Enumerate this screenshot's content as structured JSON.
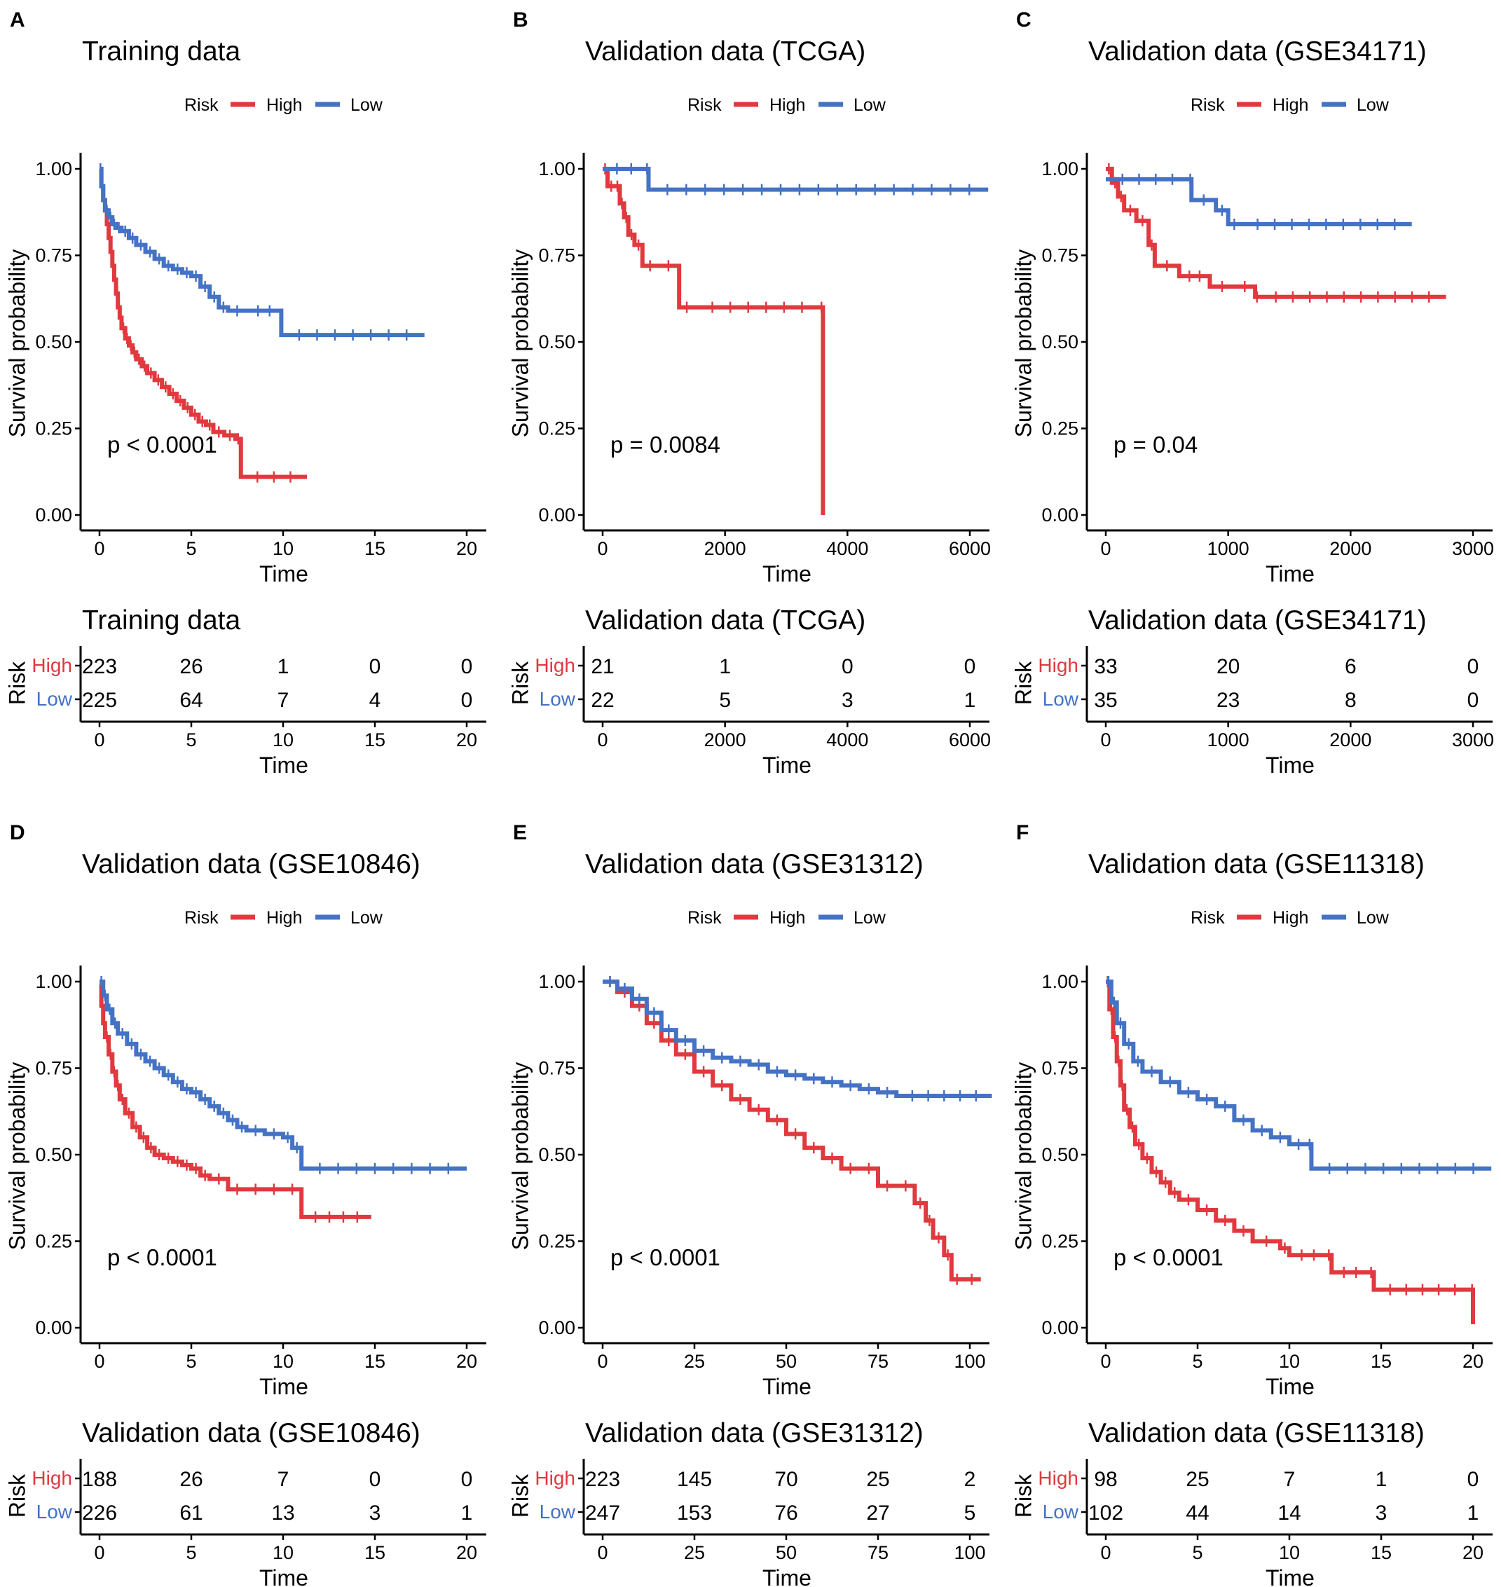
{
  "colors": {
    "high": "#e0393e",
    "low": "#4472c4",
    "axis": "#000000"
  },
  "legend": {
    "title": "Risk",
    "high": "High",
    "low": "Low"
  },
  "axis_labels": {
    "x": "Time",
    "y": "Survival probability",
    "risk_y": "Risk"
  },
  "chart_data": [
    {
      "type": "line",
      "panel": "A",
      "title": "Training data",
      "pvalue": "p < 0.0001",
      "xlim": [
        0,
        20
      ],
      "xticks": [
        "0",
        "5",
        "10",
        "15",
        "20"
      ],
      "ylim": [
        0,
        1
      ],
      "yticks": [
        "0.00",
        "0.25",
        "0.50",
        "0.75",
        "1.00"
      ],
      "series": [
        {
          "name": "High",
          "x": [
            0,
            0.1,
            0.2,
            0.3,
            0.4,
            0.5,
            0.6,
            0.7,
            0.8,
            0.9,
            1.0,
            1.1,
            1.2,
            1.4,
            1.6,
            1.8,
            2.0,
            2.3,
            2.6,
            3.0,
            3.4,
            3.8,
            4.2,
            4.6,
            5.0,
            5.4,
            5.8,
            6.2,
            6.8,
            7.4,
            7.7,
            11.3
          ],
          "y": [
            1.0,
            0.95,
            0.91,
            0.88,
            0.84,
            0.8,
            0.76,
            0.72,
            0.68,
            0.64,
            0.6,
            0.57,
            0.54,
            0.51,
            0.49,
            0.47,
            0.45,
            0.43,
            0.41,
            0.39,
            0.37,
            0.35,
            0.33,
            0.31,
            0.29,
            0.27,
            0.26,
            0.24,
            0.23,
            0.22,
            0.11,
            0.11
          ]
        },
        {
          "name": "Low",
          "x": [
            0,
            0.1,
            0.2,
            0.3,
            0.5,
            0.7,
            0.9,
            1.2,
            1.6,
            2.0,
            2.5,
            3.0,
            3.5,
            4.0,
            4.5,
            5.0,
            5.5,
            6.0,
            6.5,
            7.0,
            8.0,
            9.9,
            17.7
          ],
          "y": [
            1.0,
            0.95,
            0.91,
            0.88,
            0.86,
            0.84,
            0.83,
            0.82,
            0.8,
            0.78,
            0.76,
            0.74,
            0.72,
            0.71,
            0.7,
            0.69,
            0.66,
            0.63,
            0.6,
            0.59,
            0.59,
            0.52,
            0.52
          ]
        }
      ],
      "risk_table": {
        "title": "Training data",
        "high": [
          "223",
          "26",
          "1",
          "0",
          "0"
        ],
        "low": [
          "225",
          "64",
          "7",
          "4",
          "0"
        ]
      }
    },
    {
      "type": "line",
      "panel": "B",
      "title": "Validation data (TCGA)",
      "pvalue": "p = 0.0084",
      "xlim": [
        0,
        6000
      ],
      "xticks": [
        "0",
        "2000",
        "4000",
        "6000"
      ],
      "ylim": [
        0,
        1
      ],
      "yticks": [
        "0.00",
        "0.25",
        "0.50",
        "0.75",
        "1.00"
      ],
      "series": [
        {
          "name": "High",
          "x": [
            0,
            80,
            200,
            280,
            350,
            420,
            520,
            650,
            900,
            1250,
            1500,
            3550,
            3600
          ],
          "y": [
            1.0,
            0.95,
            0.95,
            0.9,
            0.86,
            0.81,
            0.78,
            0.72,
            0.72,
            0.6,
            0.6,
            0.6,
            0.0
          ]
        },
        {
          "name": "Low",
          "x": [
            0,
            700,
            750,
            6300
          ],
          "y": [
            1.0,
            1.0,
            0.94,
            0.94
          ]
        }
      ],
      "risk_table": {
        "title": "Validation data (TCGA)",
        "high": [
          "21",
          "1",
          "0",
          "0"
        ],
        "low": [
          "22",
          "5",
          "3",
          "1"
        ]
      }
    },
    {
      "type": "line",
      "panel": "C",
      "title": "Validation data (GSE34171)",
      "pvalue": "p = 0.04",
      "xlim": [
        0,
        3000
      ],
      "xticks": [
        "0",
        "1000",
        "2000",
        "3000"
      ],
      "ylim": [
        0,
        1
      ],
      "yticks": [
        "0.00",
        "0.25",
        "0.50",
        "0.75",
        "1.00"
      ],
      "series": [
        {
          "name": "High",
          "x": [
            0,
            50,
            100,
            150,
            250,
            350,
            400,
            600,
            850,
            1050,
            1220,
            1250,
            2780
          ],
          "y": [
            1.0,
            0.96,
            0.92,
            0.88,
            0.85,
            0.78,
            0.72,
            0.69,
            0.66,
            0.66,
            0.63,
            0.63,
            0.63
          ]
        },
        {
          "name": "Low",
          "x": [
            0,
            680,
            700,
            900,
            1000,
            1100,
            2500
          ],
          "y": [
            0.97,
            0.97,
            0.91,
            0.88,
            0.84,
            0.84,
            0.84
          ]
        }
      ],
      "risk_table": {
        "title": "Validation data (GSE34171)",
        "high": [
          "33",
          "20",
          "6",
          "0"
        ],
        "low": [
          "35",
          "23",
          "8",
          "0"
        ]
      }
    },
    {
      "type": "line",
      "panel": "D",
      "title": "Validation data (GSE10846)",
      "pvalue": "p < 0.0001",
      "xlim": [
        0,
        20
      ],
      "xticks": [
        "0",
        "5",
        "10",
        "15",
        "20"
      ],
      "ylim": [
        0,
        1
      ],
      "yticks": [
        "0.00",
        "0.25",
        "0.50",
        "0.75",
        "1.00"
      ],
      "series": [
        {
          "name": "High",
          "x": [
            0,
            0.1,
            0.2,
            0.3,
            0.5,
            0.7,
            0.9,
            1.1,
            1.4,
            1.8,
            2.2,
            2.6,
            3.0,
            3.5,
            4.0,
            4.5,
            5.0,
            5.5,
            6.0,
            7.0,
            8.0,
            9.0,
            10.0,
            11.0,
            14.8
          ],
          "y": [
            0.99,
            0.93,
            0.88,
            0.84,
            0.79,
            0.74,
            0.7,
            0.66,
            0.62,
            0.58,
            0.55,
            0.52,
            0.5,
            0.49,
            0.48,
            0.47,
            0.46,
            0.44,
            0.43,
            0.4,
            0.4,
            0.4,
            0.4,
            0.32,
            0.32
          ]
        },
        {
          "name": "Low",
          "x": [
            0,
            0.2,
            0.4,
            0.7,
            1.0,
            1.5,
            2.0,
            2.5,
            3.0,
            3.5,
            4.0,
            4.5,
            5.0,
            5.5,
            6.0,
            6.5,
            7.0,
            7.5,
            8.0,
            9.0,
            10.0,
            10.5,
            11.0,
            20.0
          ],
          "y": [
            1.0,
            0.96,
            0.92,
            0.88,
            0.85,
            0.82,
            0.79,
            0.77,
            0.75,
            0.73,
            0.71,
            0.69,
            0.68,
            0.66,
            0.64,
            0.62,
            0.6,
            0.58,
            0.57,
            0.56,
            0.55,
            0.52,
            0.46,
            0.46
          ]
        }
      ],
      "risk_table": {
        "title": "Validation data (GSE10846)",
        "high": [
          "188",
          "26",
          "7",
          "0",
          "0"
        ],
        "low": [
          "226",
          "61",
          "13",
          "3",
          "1"
        ]
      }
    },
    {
      "type": "line",
      "panel": "E",
      "title": "Validation data (GSE31312)",
      "pvalue": "p < 0.0001",
      "xlim": [
        0,
        100
      ],
      "xticks": [
        "0",
        "25",
        "50",
        "75",
        "100"
      ],
      "ylim": [
        0,
        1
      ],
      "yticks": [
        "0.00",
        "0.25",
        "0.50",
        "0.75",
        "1.00"
      ],
      "series": [
        {
          "name": "High",
          "x": [
            0,
            4,
            8,
            12,
            16,
            20,
            25,
            30,
            35,
            40,
            45,
            50,
            55,
            60,
            65,
            70,
            75,
            80,
            85,
            88,
            90,
            93,
            95,
            98,
            103
          ],
          "y": [
            1.0,
            0.97,
            0.93,
            0.88,
            0.83,
            0.79,
            0.74,
            0.7,
            0.66,
            0.63,
            0.6,
            0.56,
            0.52,
            0.49,
            0.46,
            0.46,
            0.41,
            0.41,
            0.36,
            0.31,
            0.26,
            0.21,
            0.14,
            0.14,
            0.14
          ]
        },
        {
          "name": "Low",
          "x": [
            0,
            4,
            8,
            12,
            16,
            20,
            25,
            30,
            35,
            40,
            45,
            50,
            55,
            60,
            65,
            70,
            75,
            80,
            106
          ],
          "y": [
            1.0,
            0.98,
            0.95,
            0.91,
            0.86,
            0.83,
            0.8,
            0.78,
            0.77,
            0.76,
            0.74,
            0.73,
            0.72,
            0.71,
            0.7,
            0.69,
            0.68,
            0.67,
            0.67
          ]
        }
      ],
      "risk_table": {
        "title": "Validation data (GSE31312)",
        "high": [
          "223",
          "145",
          "70",
          "25",
          "2"
        ],
        "low": [
          "247",
          "153",
          "76",
          "27",
          "5"
        ]
      }
    },
    {
      "type": "line",
      "panel": "F",
      "title": "Validation data (GSE11318)",
      "pvalue": "p < 0.0001",
      "xlim": [
        0,
        20
      ],
      "xticks": [
        "0",
        "5",
        "10",
        "15",
        "20"
      ],
      "ylim": [
        0,
        1
      ],
      "yticks": [
        "0.00",
        "0.25",
        "0.50",
        "0.75",
        "1.00"
      ],
      "series": [
        {
          "name": "High",
          "x": [
            0,
            0.2,
            0.4,
            0.6,
            0.8,
            1.0,
            1.3,
            1.6,
            2.0,
            2.5,
            3.0,
            3.5,
            4.0,
            5.0,
            6.0,
            7.0,
            8.0,
            9.5,
            10.0,
            12.0,
            12.3,
            14.3,
            14.6,
            19.9,
            20.0
          ],
          "y": [
            1.0,
            0.92,
            0.84,
            0.77,
            0.7,
            0.63,
            0.58,
            0.53,
            0.49,
            0.45,
            0.42,
            0.39,
            0.37,
            0.34,
            0.31,
            0.28,
            0.25,
            0.23,
            0.21,
            0.21,
            0.16,
            0.16,
            0.11,
            0.11,
            0.01
          ]
        },
        {
          "name": "Low",
          "x": [
            0,
            0.3,
            0.6,
            1.0,
            1.5,
            2.0,
            3.0,
            4.0,
            5.0,
            6.0,
            7.0,
            8.0,
            9.0,
            10.0,
            11.0,
            11.2,
            21.0
          ],
          "y": [
            1.0,
            0.94,
            0.88,
            0.82,
            0.77,
            0.74,
            0.71,
            0.68,
            0.66,
            0.64,
            0.6,
            0.57,
            0.55,
            0.53,
            0.53,
            0.46,
            0.46
          ]
        }
      ],
      "risk_table": {
        "title": "Validation data (GSE11318)",
        "high": [
          "98",
          "25",
          "7",
          "1",
          "0"
        ],
        "low": [
          "102",
          "44",
          "14",
          "3",
          "1"
        ]
      }
    }
  ]
}
